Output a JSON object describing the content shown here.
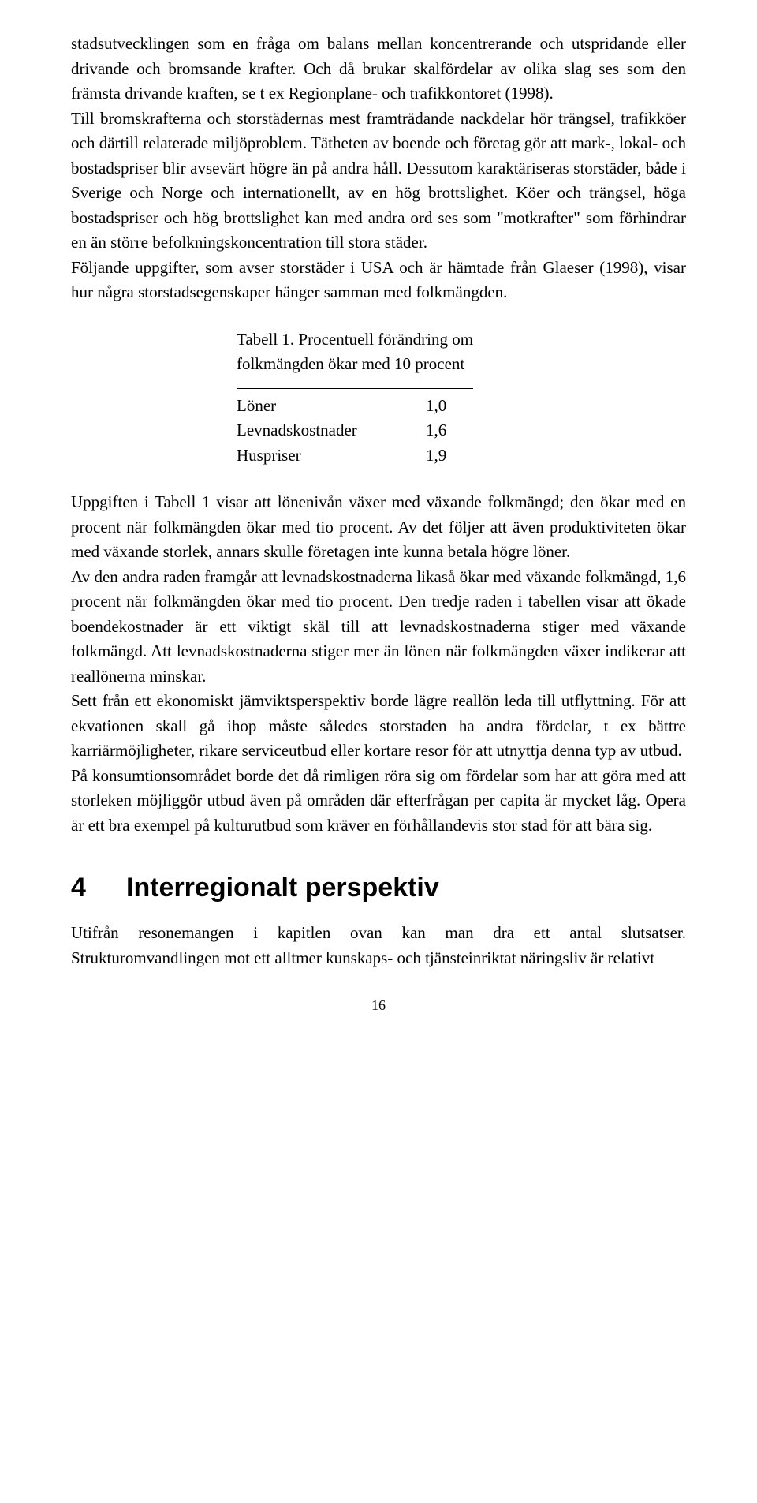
{
  "para1": "stadsutvecklingen som en fråga om balans mellan koncentrerande och utspridande eller drivande och bromsande krafter. Och då brukar skalfördelar av olika slag ses som den främsta drivande kraften, se t ex Regionplane- och trafikkontoret (1998).",
  "para2": "Till bromskrafterna och storstädernas mest framträdande nackdelar hör trängsel, trafikköer och därtill relaterade miljöproblem. Tätheten av boende och företag gör att mark-, lokal- och bostadspriser blir avsevärt högre än på andra håll. Dessutom karaktäriseras storstäder, både i Sverige och Norge och internationellt, av en hög brottslighet. Köer och trängsel, höga bostadspriser och hög brottslighet kan med andra ord ses som \"motkrafter\" som förhindrar en än större befolkningskoncentration till stora städer.",
  "para3": "Följande uppgifter, som avser storstäder i USA och är hämtade från Glaeser (1998), visar hur några storstadsegenskaper hänger samman med folkmängden.",
  "table": {
    "title_l1": "Tabell 1. Procentuell förändring om",
    "title_l2": "folkmängden ökar med 10 procent",
    "rows": [
      {
        "label": "Löner",
        "value": "1,0"
      },
      {
        "label": "Levnadskostnader",
        "value": "1,6"
      },
      {
        "label": "Huspriser",
        "value": "1,9"
      }
    ]
  },
  "para4": "Uppgiften i Tabell 1 visar att lönenivån växer med växande folkmängd; den ökar med en procent när folkmängden ökar med tio procent. Av det följer att även produktiviteten ökar med växande storlek, annars skulle företagen inte kunna betala högre löner.",
  "para5": "Av den andra raden framgår att levnadskostnaderna likaså ökar med växande folkmängd, 1,6 procent när folkmängden ökar med tio procent. Den tredje raden i tabellen visar att ökade boendekostnader är ett viktigt skäl till att levnadskostnaderna stiger med växande folkmängd. Att levnadskostnaderna stiger mer än lönen när folkmängden växer indikerar att reallönerna minskar.",
  "para6": "Sett från ett ekonomiskt jämviktsperspektiv borde lägre reallön leda till utflyttning. För att ekvationen skall gå ihop måste således storstaden ha andra fördelar, t ex bättre karriärmöjligheter, rikare serviceutbud eller kortare resor för att utnyttja denna typ av utbud.",
  "para7": "På konsumtionsområdet borde det då rimligen röra sig om fördelar som har att göra med att storleken möjliggör utbud även på områden där efterfrågan per capita är mycket låg. Opera är ett bra exempel på kulturutbud som kräver en förhållandevis stor stad för att bära sig.",
  "heading": {
    "num": "4",
    "text": "Interregionalt perspektiv"
  },
  "para8": "Utifrån resonemangen i kapitlen ovan kan man dra ett antal slutsatser. Strukturomvandlingen mot ett alltmer kunskaps- och tjänsteinriktat näringsliv är relativt",
  "pagenum": "16"
}
